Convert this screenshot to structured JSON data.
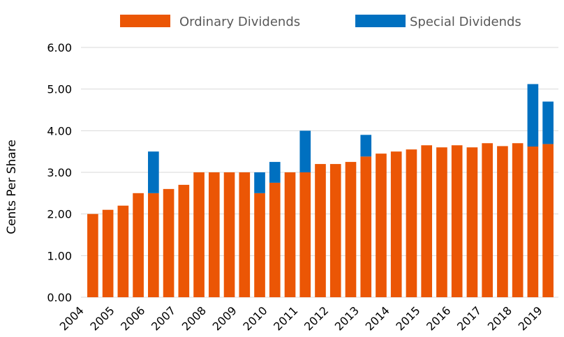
{
  "chart_data": {
    "type": "bar",
    "stacked": true,
    "title": "",
    "xlabel": "",
    "ylabel": "Cents Per Share",
    "ylim": [
      0,
      6
    ],
    "yticks": [
      "0.00",
      "1.00",
      "2.00",
      "3.00",
      "4.00",
      "5.00",
      "6.00"
    ],
    "grid": true,
    "legend_position": "top",
    "year_labels": [
      "2004",
      "2005",
      "2006",
      "2007",
      "2008",
      "2009",
      "2010",
      "2011",
      "2012",
      "2013",
      "2014",
      "2015",
      "2016",
      "2017",
      "2018",
      "2019"
    ],
    "series": [
      {
        "name": "Ordinary Dividends",
        "color": "#eb5605",
        "values": [
          2.0,
          2.1,
          2.2,
          2.5,
          2.5,
          2.6,
          2.7,
          3.0,
          3.0,
          3.0,
          3.0,
          2.5,
          2.75,
          3.0,
          3.0,
          3.2,
          3.2,
          3.25,
          3.38,
          3.45,
          3.5,
          3.55,
          3.65,
          3.6,
          3.65,
          3.6,
          3.7,
          3.63,
          3.7,
          3.62,
          3.68
        ]
      },
      {
        "name": "Special Dividends",
        "color": "#0070c0",
        "values": [
          0,
          0,
          0,
          0,
          1.0,
          0,
          0,
          0,
          0,
          0,
          0,
          0.5,
          0.5,
          0,
          1.0,
          0,
          0,
          0,
          0.52,
          0,
          0,
          0,
          0,
          0,
          0,
          0,
          0,
          0,
          0,
          1.5,
          1.02
        ]
      }
    ]
  }
}
